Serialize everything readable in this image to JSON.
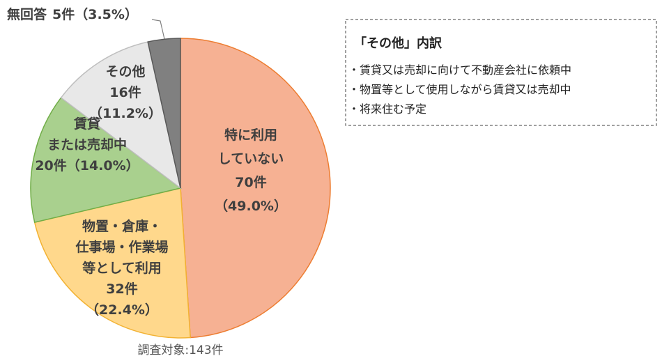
{
  "chart_data": {
    "type": "pie",
    "categories": [
      "特に利用\nしていない",
      "物置・倉庫・\n仕事場・作業場\n等として利用",
      "賃貸\nまたは売却中",
      "その他",
      "無回答"
    ],
    "values": [
      70,
      32,
      20,
      16,
      5
    ],
    "value_labels": [
      "70件\n（49.0%）",
      "32件\n（22.4%）",
      "20件（14.0%）",
      "16件\n（11.2%）",
      "5件（3.5%）"
    ],
    "colors": [
      "#f6b193",
      "#ffd88c",
      "#a9d08e",
      "#e8e8e8",
      "#808080"
    ],
    "footnote": "調査対象:143件"
  },
  "note_box": {
    "title": "「その他」内訳",
    "items": [
      "・賃貸又は売却に向けて不動産会社に依頼中",
      "・物置等として使用しながら賃貸又は売却中",
      "・将来住む予定"
    ]
  }
}
